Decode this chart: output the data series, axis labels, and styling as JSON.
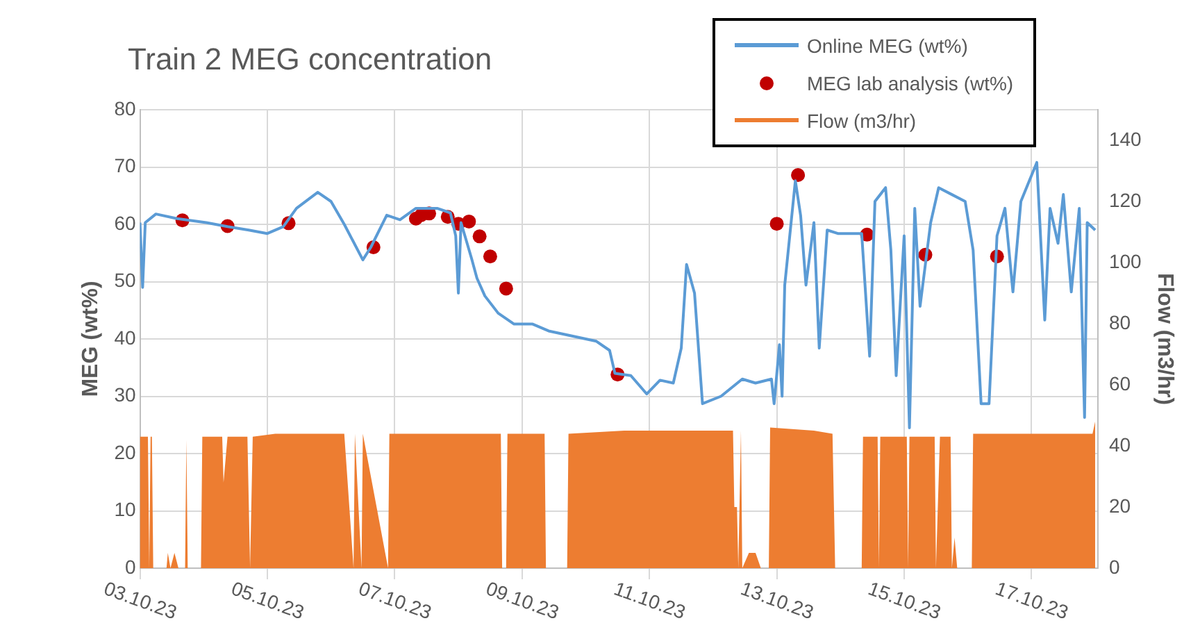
{
  "chart_data": {
    "type": "line",
    "title": "Train 2 MEG concentration",
    "ylabel": "MEG (wt%)",
    "y2label": "Flow (m3/hr)",
    "xlim": [
      "--10-03",
      "--10-18T01:00"
    ],
    "xticks": [
      {
        "value": "--10-03",
        "label": "03.10.23"
      },
      {
        "value": "--10-05",
        "label": "05.10.23"
      },
      {
        "value": "--10-07",
        "label": "07.10.23"
      },
      {
        "value": "--10-09",
        "label": "09.10.23"
      },
      {
        "value": "--10-11",
        "label": "11.10.23"
      },
      {
        "value": "--10-13",
        "label": "13.10.23"
      },
      {
        "value": "--10-15",
        "label": "15.10.23"
      },
      {
        "value": "--10-17",
        "label": "17.10.23"
      }
    ],
    "ylim": [
      0,
      80
    ],
    "yticks": [
      0,
      10,
      20,
      30,
      40,
      50,
      60,
      70,
      80
    ],
    "y2lim": [
      0,
      150
    ],
    "y2ticks": [
      0,
      20,
      40,
      60,
      80,
      100,
      120,
      140
    ],
    "grid": true,
    "legend": "top right",
    "series": [
      {
        "name": "Online MEG (wt%)",
        "type": "line",
        "color": "#5b9bd5",
        "marker": "none",
        "x": [
          "--10-03T00:00",
          "--10-03T01:00",
          "--10-03T02:00",
          "--10-03T06:00",
          "--10-03T14:00",
          "--10-04T01:00",
          "--10-04T09:00",
          "--10-04T17:00",
          "--10-05T00:00",
          "--10-05T06:00",
          "--10-05T11:00",
          "--10-05T19:00",
          "--10-06T00:00",
          "--10-06T05:00",
          "--10-06T12:00",
          "--10-06T15:00",
          "--10-06T21:00",
          "--10-07T02:00",
          "--10-07T08:00",
          "--10-07T16:00",
          "--10-07T21:00",
          "--10-07T23:00",
          "--10-08T00:00",
          "--10-08T01:00",
          "--10-08T05:00",
          "--10-08T07:00",
          "--10-08T10:00",
          "--10-08T15:00",
          "--10-08T21:00",
          "--10-09T04:00",
          "--10-09T10:00",
          "--10-10T04:00",
          "--10-10T09:00",
          "--10-10T11:00",
          "--10-10T17:00",
          "--10-10T23:00",
          "--10-11T04:00",
          "--10-11T09:00",
          "--10-11T12:00",
          "--10-11T14:00",
          "--10-11T17:00",
          "--10-11T20:00",
          "--10-12T03:00",
          "--10-12T11:00",
          "--10-12T16:00",
          "--10-12T22:00",
          "--10-12T23:00",
          "--10-13T01:00",
          "--10-13T02:00",
          "--10-13T03:00",
          "--10-13T07:00",
          "--10-13T09:00",
          "--10-13T11:00",
          "--10-13T14:00",
          "--10-13T16:00",
          "--10-13T19:00",
          "--10-13T23:00",
          "--10-14T08:00",
          "--10-14T11:00",
          "--10-14T13:00",
          "--10-14T17:00",
          "--10-14T19:00",
          "--10-14T21:00",
          "--10-15T00:00",
          "--10-15T02:00",
          "--10-15T04:00",
          "--10-15T06:00",
          "--10-15T10:00",
          "--10-15T13:00",
          "--10-15T18:00",
          "--10-15T23:00",
          "--10-16T02:00",
          "--10-16T05:00",
          "--10-16T08:00",
          "--10-16T11:00",
          "--10-16T14:00",
          "--10-16T17:00",
          "--10-16T20:00",
          "--10-17T02:00",
          "--10-17T05:00",
          "--10-17T07:00",
          "--10-17T10:00",
          "--10-17T12:00",
          "--10-17T15:00",
          "--10-17T18:00",
          "--10-17T20:00",
          "--10-17T21:00",
          "--10-18T00:00"
        ],
        "values": [
          60.3,
          49,
          60.3,
          61.8,
          61,
          60.3,
          59.6,
          59,
          58.4,
          59.6,
          62.8,
          65.6,
          64,
          60,
          53.8,
          56,
          61.6,
          60.8,
          62.8,
          62.8,
          62,
          58,
          48,
          60.3,
          54,
          50.6,
          47.5,
          44.5,
          42.6,
          42.6,
          41.4,
          39.6,
          38,
          34,
          33.6,
          30.4,
          32.8,
          32.3,
          38.4,
          53,
          48,
          28.7,
          30,
          33,
          32.3,
          33,
          28.7,
          39,
          30,
          49.4,
          67.6,
          61.5,
          49.4,
          60.3,
          38.4,
          59,
          58.4,
          58.4,
          37,
          64,
          66.4,
          55.5,
          33.6,
          58,
          24.5,
          62.8,
          45.7,
          60.3,
          66.4,
          65.2,
          64,
          55.5,
          28.7,
          28.7,
          58,
          62.8,
          48.2,
          64,
          70.8,
          43.3,
          62.8,
          56.7,
          65.2,
          48.2,
          62.8,
          26.3,
          60.3,
          59
        ]
      },
      {
        "name": "MEG lab analysis (wt%)",
        "type": "scatter",
        "color": "#c00000",
        "marker": "circle",
        "x": [
          "--10-03T16:00",
          "--10-04T09:00",
          "--10-05T08:00",
          "--10-06T16:00",
          "--10-07T08:00",
          "--10-07T10:00",
          "--10-07T13:00",
          "--10-07T20:00",
          "--10-08T00:00",
          "--10-08T04:00",
          "--10-08T08:00",
          "--10-08T12:00",
          "--10-08T18:00",
          "--10-10T12:00",
          "--10-13T00:00",
          "--10-13T08:00",
          "--10-14T10:00",
          "--10-15T08:00",
          "--10-16T11:00"
        ],
        "values": [
          60.7,
          59.7,
          60.2,
          56,
          61,
          61.6,
          61.9,
          61.3,
          60.1,
          60.5,
          57.9,
          54.4,
          48.8,
          33.8,
          60.1,
          68.6,
          58.2,
          54.7,
          54.4
        ]
      },
      {
        "name": "Flow (m3/hr)",
        "type": "area",
        "axis": "y2",
        "color": "#ed7d31",
        "marker": "none",
        "x": [
          "--10-03T00:00",
          "--10-03T03:00",
          "--10-03T03:30",
          "--10-03T04:00",
          "--10-03T04:30",
          "--10-03T05:00",
          "--10-03T10:00",
          "--10-03T10:30",
          "--10-03T11:30",
          "--10-03T13:00",
          "--10-03T14:30",
          "--10-03T17:00",
          "--10-03T17:30",
          "--10-03T18:00",
          "--10-03T23:00",
          "--10-03T23:30",
          "--10-04T07:00",
          "--10-04T07:30",
          "--10-04T09:00",
          "--10-04T16:30",
          "--10-04T17:30",
          "--10-04T18:30",
          "--10-05T03:00",
          "--10-05T16:00",
          "--10-06T05:00",
          "--10-06T08:30",
          "--10-06T09:00",
          "--10-06T11:30",
          "--10-06T12:00",
          "--10-06T21:30",
          "--10-06T22:00",
          "--10-07T18:00",
          "--10-08T16:00",
          "--10-08T16:30",
          "--10-08T18:00",
          "--10-08T18:30",
          "--10-09T08:30",
          "--10-09T09:00",
          "--10-09T17:00",
          "--10-09T17:30",
          "--10-10T14:30",
          "--10-11T11:30",
          "--10-12T07:30",
          "--10-12T08:00",
          "--10-12T09:00",
          "--10-12T09:30",
          "--10-12T10:30",
          "--10-12T11:00",
          "--10-12T13:30",
          "--10-12T16:00",
          "--10-12T18:00",
          "--10-12T21:00",
          "--10-12T21:30",
          "--10-13T14:00",
          "--10-13T21:00",
          "--10-13T22:00",
          "--10-14T08:00",
          "--10-14T08:30",
          "--10-14T14:00",
          "--10-14T14:30",
          "--10-14T15:00",
          "--10-15T01:00",
          "--10-15T01:30",
          "--10-15T02:00",
          "--10-15T11:30",
          "--10-15T12:00",
          "--10-15T13:30",
          "--10-15T17:30",
          "--10-15T18:00",
          "--10-15T19:00",
          "--10-15T20:00",
          "--10-16T01:30",
          "--10-16T02:00",
          "--10-16T23:00",
          "--10-17T23:00",
          "--10-18T00:00"
        ],
        "values": [
          43,
          43,
          0,
          43,
          43,
          0,
          0,
          5,
          0,
          5,
          0,
          0,
          42,
          0,
          0,
          43,
          43,
          28,
          43,
          43,
          0,
          43,
          44,
          44,
          44,
          0,
          44,
          0,
          44,
          0,
          44,
          44,
          44,
          0,
          0,
          44,
          44,
          0,
          0,
          44,
          45,
          45,
          45,
          20,
          20,
          0,
          45,
          0,
          5,
          5,
          0,
          0,
          46,
          45,
          44,
          0,
          0,
          43,
          43,
          0,
          43,
          43,
          0,
          43,
          43,
          0,
          43,
          43,
          0,
          10,
          0,
          0,
          44,
          44,
          44,
          48
        ]
      }
    ]
  }
}
